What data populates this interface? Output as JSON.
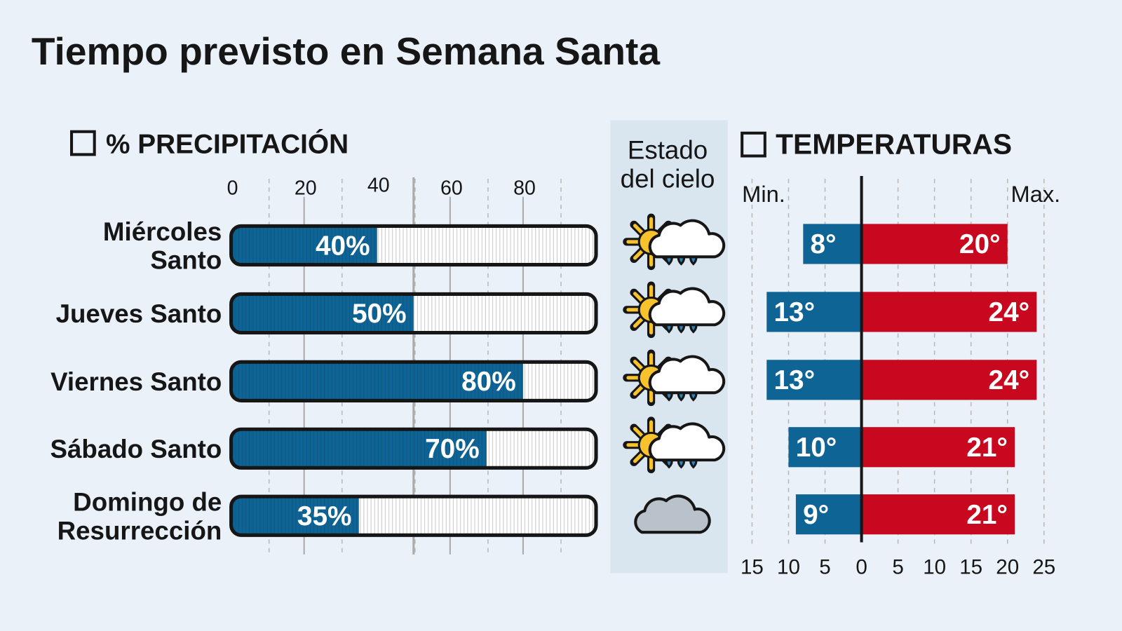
{
  "title": "Tiempo previsto en Semana Santa",
  "colors": {
    "background": "#ebf1f9",
    "precip": "#0f6496",
    "min": "#0f6496",
    "max": "#c8081e",
    "sky_column": "#d9e6f0",
    "sun": "#f7c22b"
  },
  "chart_data": [
    {
      "type": "bar",
      "title": "% PRECIPITACIÓN",
      "categories": [
        "Miércoles Santo",
        "Jueves Santo",
        "Viernes Santo",
        "Sábado Santo",
        "Domingo de Resurrección"
      ],
      "category_lines": [
        [
          "Miércoles",
          "Santo"
        ],
        [
          "Jueves Santo"
        ],
        [
          "Viernes Santo"
        ],
        [
          "Sábado Santo"
        ],
        [
          "Domingo de",
          "Resurrección"
        ]
      ],
      "values": [
        40,
        50,
        80,
        70,
        35
      ],
      "labels": [
        "40%",
        "50%",
        "80%",
        "70%",
        "35%"
      ],
      "xlim": [
        0,
        100
      ],
      "xticks": [
        0,
        20,
        40,
        60,
        80
      ],
      "xtick_labels": [
        "0",
        "20",
        "40",
        "60",
        "80"
      ],
      "orientation": "horizontal",
      "grid": true
    },
    {
      "type": "table",
      "title_lines": [
        "Estado",
        "del cielo"
      ],
      "icons": [
        "sun-cloud-rain-icon",
        "sun-cloud-rain-icon",
        "sun-cloud-rain-icon",
        "sun-cloud-rain-icon",
        "cloud-icon"
      ]
    },
    {
      "type": "bar",
      "title": "TEMPERATURAS",
      "orientation": "horizontal-diverging",
      "min_label": "Min.",
      "max_label": "Max.",
      "series": [
        {
          "name": "Min.",
          "values": [
            8,
            13,
            13,
            10,
            9
          ],
          "labels": [
            "8°",
            "13°",
            "13°",
            "10°",
            "9°"
          ]
        },
        {
          "name": "Max.",
          "values": [
            20,
            24,
            24,
            21,
            21
          ],
          "labels": [
            "20°",
            "24°",
            "24°",
            "21°",
            "21°"
          ]
        }
      ],
      "xlim": [
        -15,
        25
      ],
      "xtick_labels": [
        "15",
        "10",
        "5",
        "0",
        "5",
        "10",
        "15",
        "20",
        "25"
      ],
      "grid": true
    }
  ]
}
